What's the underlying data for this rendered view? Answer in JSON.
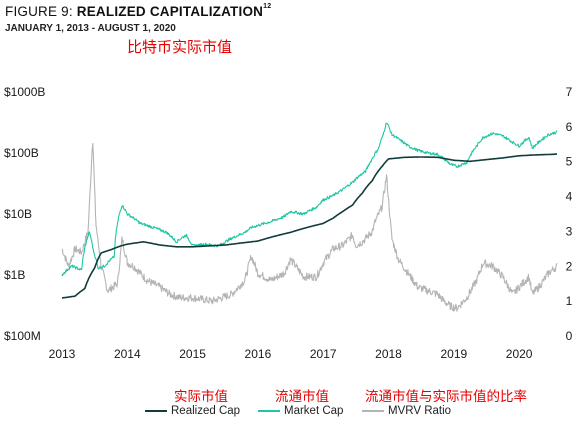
{
  "header": {
    "title_prefix": "FIGURE 9: ",
    "title_main": "REALIZED CAPITALIZATION",
    "title_sup": "12",
    "subtitle": "JANUARY 1, 2013 - AUGUST 1, 2020"
  },
  "annotations": {
    "top": "比特币实际市值",
    "realized": "实际市值",
    "market": "流通市值",
    "mvrv": "流通市值与实际市值的比率"
  },
  "colors": {
    "realized": "#123c3c",
    "market": "#1fc6a3",
    "mvrv": "#b4b4b4"
  },
  "legend": [
    {
      "label": "Realized Cap",
      "color": "#123c3c"
    },
    {
      "label": "Market Cap",
      "color": "#1fc6a3"
    },
    {
      "label": "MVRV Ratio",
      "color": "#b4b4b4"
    }
  ],
  "chart_data": {
    "type": "line",
    "x_ticks": [
      "2013",
      "2014",
      "2015",
      "2016",
      "2017",
      "2018",
      "2019",
      "2020"
    ],
    "y_left_ticks": [
      "$100M",
      "$1B",
      "$10B",
      "$100B",
      "$1000B"
    ],
    "y_right_ticks": [
      "0",
      "1",
      "2",
      "3",
      "4",
      "5",
      "6",
      "7"
    ],
    "y_left_scale": "log",
    "y_left_range_usd_billions": [
      0.1,
      1000
    ],
    "y_right_range": [
      0,
      7
    ],
    "x_range": [
      2013.0,
      2020.58
    ],
    "series": [
      {
        "name": "Realized Cap",
        "axis": "left",
        "x": [
          2013.0,
          2013.2,
          2013.35,
          2013.5,
          2013.6,
          2013.75,
          2013.9,
          2014.0,
          2014.25,
          2014.5,
          2014.75,
          2015.0,
          2015.5,
          2016.0,
          2016.5,
          2017.0,
          2017.15,
          2017.3,
          2017.45,
          2017.6,
          2017.75,
          2017.9,
          2018.0,
          2018.25,
          2018.5,
          2018.75,
          2019.0,
          2019.25,
          2019.5,
          2019.75,
          2020.0,
          2020.25,
          2020.5,
          2020.58
        ],
        "y": [
          0.42,
          0.45,
          0.6,
          1.3,
          2.3,
          2.6,
          3.0,
          3.2,
          3.5,
          3.1,
          2.9,
          2.9,
          3.1,
          3.6,
          5.0,
          7.0,
          8.5,
          11,
          14,
          22,
          35,
          60,
          80,
          85,
          86,
          85,
          76,
          73,
          78,
          83,
          90,
          93,
          95,
          96
        ]
      },
      {
        "name": "Market Cap",
        "axis": "left",
        "x": [
          2013.0,
          2013.15,
          2013.3,
          2013.42,
          2013.48,
          2013.55,
          2013.65,
          2013.8,
          2013.92,
          2014.0,
          2014.2,
          2014.4,
          2014.6,
          2014.75,
          2014.9,
          2015.0,
          2015.2,
          2015.4,
          2015.6,
          2015.8,
          2015.9,
          2016.0,
          2016.2,
          2016.4,
          2016.5,
          2016.7,
          2016.9,
          2017.0,
          2017.15,
          2017.3,
          2017.45,
          2017.55,
          2017.65,
          2017.75,
          2017.85,
          2017.92,
          2017.97,
          2018.05,
          2018.15,
          2018.3,
          2018.45,
          2018.6,
          2018.75,
          2018.85,
          2018.95,
          2019.05,
          2019.2,
          2019.35,
          2019.45,
          2019.6,
          2019.75,
          2019.9,
          2020.0,
          2020.15,
          2020.2,
          2020.3,
          2020.45,
          2020.58
        ],
        "y": [
          1.0,
          1.4,
          1.2,
          5.0,
          2.5,
          1.3,
          1.4,
          2.0,
          14,
          10,
          7,
          6,
          5,
          3.5,
          4.5,
          3.0,
          3.2,
          3.0,
          4.0,
          5.0,
          6.0,
          6.5,
          7.5,
          9.0,
          11,
          10,
          13,
          17,
          20,
          25,
          33,
          42,
          50,
          80,
          120,
          200,
          320,
          200,
          170,
          130,
          110,
          100,
          95,
          80,
          65,
          60,
          70,
          130,
          180,
          210,
          190,
          150,
          130,
          180,
          120,
          150,
          200,
          220
        ]
      },
      {
        "name": "MVRV Ratio",
        "axis": "right",
        "x": [
          2013.0,
          2013.1,
          2013.2,
          2013.3,
          2013.4,
          2013.47,
          2013.52,
          2013.6,
          2013.7,
          2013.85,
          2013.92,
          2014.0,
          2014.1,
          2014.3,
          2014.5,
          2014.65,
          2014.8,
          2015.0,
          2015.3,
          2015.6,
          2015.8,
          2015.9,
          2016.0,
          2016.2,
          2016.4,
          2016.5,
          2016.7,
          2016.9,
          2017.0,
          2017.15,
          2017.3,
          2017.45,
          2017.5,
          2017.6,
          2017.75,
          2017.8,
          2017.9,
          2017.97,
          2018.05,
          2018.15,
          2018.3,
          2018.45,
          2018.6,
          2018.75,
          2018.85,
          2018.95,
          2019.05,
          2019.2,
          2019.35,
          2019.45,
          2019.6,
          2019.75,
          2019.9,
          2020.0,
          2020.15,
          2020.2,
          2020.3,
          2020.45,
          2020.58
        ],
        "y": [
          2.5,
          2.0,
          2.5,
          2.4,
          3.0,
          5.7,
          3.2,
          2.0,
          1.3,
          1.5,
          2.8,
          2.1,
          2.0,
          1.6,
          1.4,
          1.2,
          1.1,
          1.1,
          1.0,
          1.2,
          1.6,
          2.3,
          1.8,
          1.6,
          1.8,
          2.2,
          1.7,
          1.7,
          2.1,
          2.5,
          2.6,
          2.9,
          2.6,
          2.7,
          3.0,
          3.3,
          3.7,
          4.6,
          2.8,
          2.2,
          1.8,
          1.4,
          1.3,
          1.2,
          1.0,
          0.85,
          0.8,
          1.1,
          1.6,
          2.1,
          2.0,
          1.7,
          1.2,
          1.4,
          1.7,
          1.2,
          1.4,
          1.8,
          2.0
        ]
      }
    ]
  }
}
